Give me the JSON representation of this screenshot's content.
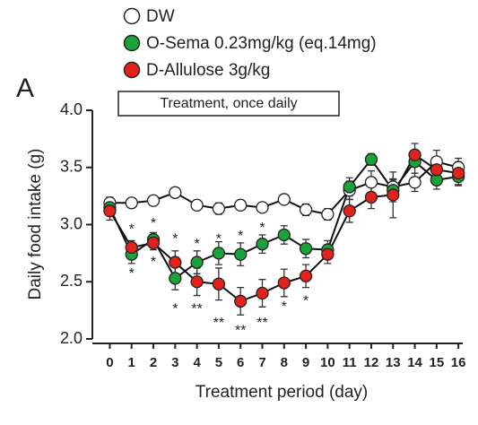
{
  "chart_data": {
    "type": "line",
    "panel_label": "A",
    "box_title": "Treatment, once daily",
    "x_label": "Treatment period (day)",
    "y_label": "Daily food intake (g)",
    "x": [
      0,
      1,
      2,
      3,
      4,
      5,
      6,
      7,
      8,
      9,
      10,
      11,
      12,
      13,
      14,
      15,
      16
    ],
    "xlim": [
      -0.8,
      16.2
    ],
    "xticks": [
      0,
      1,
      2,
      3,
      4,
      5,
      6,
      7,
      8,
      9,
      10,
      11,
      12,
      13,
      14,
      15,
      16
    ],
    "ylim": [
      2,
      4
    ],
    "yticks": [
      {
        "value": 2,
        "label": "2.0"
      },
      {
        "value": 2.5,
        "label": "2.5"
      },
      {
        "value": 3,
        "label": "3.0"
      },
      {
        "value": 3.5,
        "label": "3.5"
      },
      {
        "value": 4,
        "label": "4.0"
      }
    ],
    "series": [
      {
        "name": "DW",
        "color": "#ffffff",
        "values": [
          3.19,
          3.19,
          3.21,
          3.28,
          3.17,
          3.14,
          3.17,
          3.15,
          3.22,
          3.13,
          3.09,
          3.3,
          3.37,
          3.33,
          3.37,
          3.55,
          3.5
        ],
        "errors": [
          0.05,
          0.04,
          0.04,
          0.04,
          0.04,
          0.05,
          0.04,
          0.04,
          0.04,
          0.05,
          0.05,
          0.08,
          0.1,
          0.06,
          0.08,
          0.1,
          0.08
        ]
      },
      {
        "name": "O-Sema 0.23mg/kg (eq.14mg)",
        "color": "#1aa33a",
        "values": [
          3.15,
          2.74,
          2.87,
          2.53,
          2.67,
          2.75,
          2.74,
          2.83,
          2.91,
          2.79,
          2.78,
          3.33,
          3.57,
          3.3,
          3.55,
          3.39,
          3.42
        ],
        "errors": [
          0.05,
          0.08,
          0.06,
          0.1,
          0.1,
          0.1,
          0.1,
          0.08,
          0.08,
          0.08,
          0.08,
          0.08,
          0.05,
          0.1,
          0.1,
          0.08,
          0.08
        ]
      },
      {
        "name": "D-Allulose 3g/kg",
        "color": "#e3221c",
        "values": [
          3.12,
          2.8,
          2.84,
          2.67,
          2.5,
          2.48,
          2.33,
          2.4,
          2.49,
          2.55,
          2.74,
          3.12,
          3.24,
          3.26,
          3.61,
          3.48,
          3.45
        ],
        "errors": [
          0.08,
          0.06,
          0.06,
          0.1,
          0.12,
          0.14,
          0.12,
          0.12,
          0.12,
          0.1,
          0.08,
          0.1,
          0.1,
          0.2,
          0.1,
          0.1,
          0.1
        ]
      }
    ],
    "annotations": [
      {
        "text": "*",
        "x": 1,
        "y": 2.98
      },
      {
        "text": "*",
        "x": 1,
        "y": 2.59
      },
      {
        "text": "*",
        "x": 2,
        "y": 3.03
      },
      {
        "text": "*",
        "x": 2,
        "y": 2.69
      },
      {
        "text": "*",
        "x": 3,
        "y": 2.89
      },
      {
        "text": "*",
        "x": 3,
        "y": 2.28
      },
      {
        "text": "*",
        "x": 4,
        "y": 2.85
      },
      {
        "text": "**",
        "x": 4,
        "y": 2.28
      },
      {
        "text": "*",
        "x": 5,
        "y": 2.89
      },
      {
        "text": "**",
        "x": 5,
        "y": 2.16
      },
      {
        "text": "*",
        "x": 6,
        "y": 2.92
      },
      {
        "text": "**",
        "x": 6,
        "y": 2.09
      },
      {
        "text": "*",
        "x": 7,
        "y": 2.99
      },
      {
        "text": "**",
        "x": 7,
        "y": 2.16
      },
      {
        "text": "*",
        "x": 8,
        "y": 2.3
      },
      {
        "text": "*",
        "x": 9,
        "y": 2.35
      }
    ]
  }
}
